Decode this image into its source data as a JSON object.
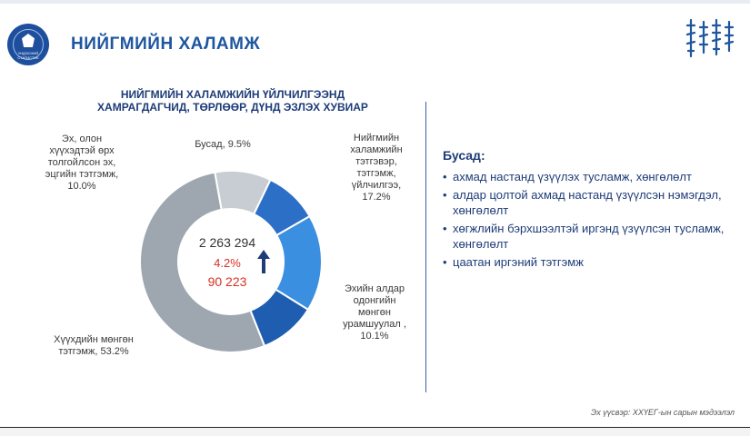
{
  "header": {
    "title": "НИЙГМИЙН ХАЛАМЖ",
    "logo_text": "ҮНДЭСНИЙ СТАТИСТИК"
  },
  "chart_data": {
    "type": "pie",
    "title": "НИЙГМИЙН ХАЛАМЖИЙН ҮЙЛЧИЛГЭЭНД ХАМРАГДАГЧИД, ТӨРЛӨӨР, ДҮНД ЭЗЛЭХ ХУВИАР",
    "slices": [
      {
        "label": "Нийгмийн халамжийн тэтгэвэр, тэтгэмж, үйлчилгээ,",
        "value": 17.2,
        "text": "17.2%",
        "color": "#3b8fe0"
      },
      {
        "label": "Эхийн алдар одонгийн мөнгөн урамшуулал",
        "value": 10.1,
        "text": ", 10.1%",
        "color": "#1f5db0"
      },
      {
        "label": "Хүүхдийн мөнгөн тэтгэмж,",
        "value": 53.2,
        "text": "53.2%",
        "color": "#9ea7b0"
      },
      {
        "label": "Эх, олон хүүхэдтэй өрх толгойлсон эх, эцгийн тэтгэмж,",
        "value": 10.0,
        "text": "10.0%",
        "color": "#c8cdd3"
      },
      {
        "label": "Бусад,",
        "value": 9.5,
        "text": "9.5%",
        "color": "#2c6fc7"
      }
    ],
    "center": {
      "total": "2 263 294",
      "change_pct": "4.2%",
      "change_abs": "90 223"
    }
  },
  "other": {
    "title": "Бусад:",
    "items": [
      "ахмад настанд үзүүлэх тусламж, хөнгөлөлт",
      "алдар цолтой ахмад настанд үзүүлсэн нэмэгдэл, хөнгөлөлт",
      "хөгжлийн бэрхшээлтэй иргэнд үзүүлсэн тусламж, хөнгөлөлт",
      "цаатан иргэний тэтгэмж"
    ]
  },
  "source": "Эх үүсвэр: ХХҮЕГ-ын сарын мэдээлэл",
  "colors": {
    "accent": "#1e56a0",
    "highlight": "#d93025"
  }
}
